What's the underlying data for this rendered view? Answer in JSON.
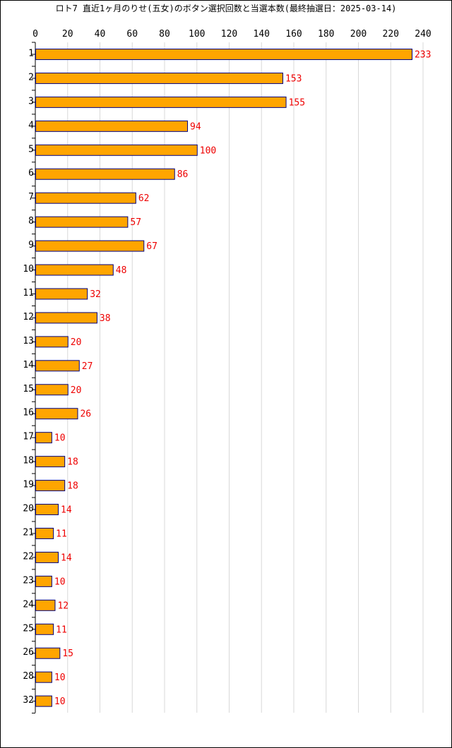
{
  "chart_data": {
    "type": "bar",
    "orientation": "horizontal",
    "title": "ロト7 直近1ヶ月のりせ(五女)のボタン選択回数と当選本数(最終抽選日：2025-03-14)",
    "xlabel": "",
    "ylabel": "",
    "xlim": [
      0,
      240
    ],
    "x_ticks": [
      0,
      20,
      40,
      60,
      80,
      100,
      120,
      140,
      160,
      180,
      200,
      220,
      240
    ],
    "grid": "vertical",
    "legend": "none",
    "categories": [
      "1",
      "2",
      "3",
      "4",
      "5",
      "6",
      "7",
      "8",
      "9",
      "10",
      "11",
      "12",
      "13",
      "14",
      "15",
      "16",
      "17",
      "18",
      "19",
      "20",
      "21",
      "22",
      "23",
      "24",
      "25",
      "26",
      "28",
      "32"
    ],
    "values": [
      233,
      153,
      155,
      94,
      100,
      86,
      62,
      57,
      67,
      48,
      32,
      38,
      20,
      27,
      20,
      26,
      10,
      18,
      18,
      14,
      11,
      14,
      10,
      12,
      11,
      15,
      10,
      10
    ],
    "colors": {
      "bar_fill": "#ffa500",
      "bar_stroke": "#000080",
      "value_label": "#ee0000",
      "grid": "#d8d8d8",
      "axis": "#000000"
    }
  }
}
